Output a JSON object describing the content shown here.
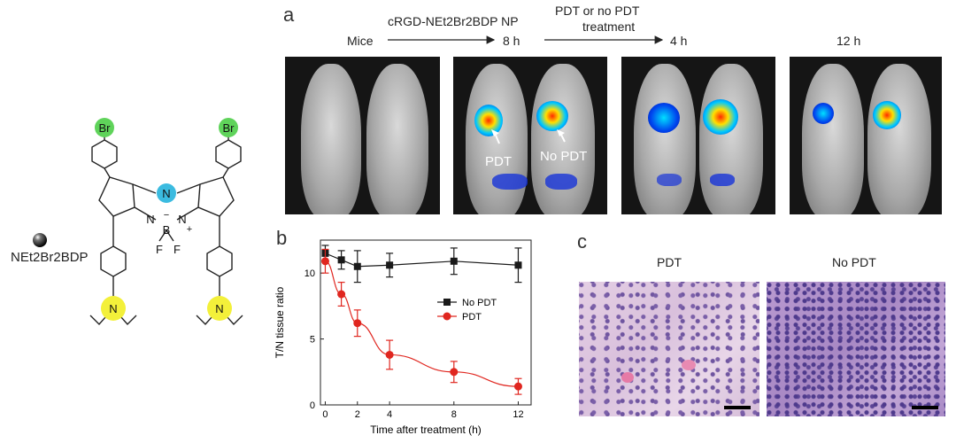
{
  "molecule": {
    "label": "NEt2Br2BDP",
    "atoms": {
      "br": "Br",
      "n": "N",
      "b": "B",
      "f": "F",
      "minus": "−",
      "plus": "+"
    },
    "colors": {
      "br": "#5fd35a",
      "n_center": "#3bbbe0",
      "n_amine": "#f3f03a"
    }
  },
  "panel_a": {
    "letter": "a",
    "step1": "cRGD-NEt2Br2BDP NP",
    "step2_line1": "PDT or no PDT",
    "step2_line2": "treatment",
    "time_labels": [
      "Mice",
      "8 h",
      "4 h",
      "12 h"
    ],
    "annot_pdt": "PDT",
    "annot_nopdt": "No PDT"
  },
  "panel_b": {
    "letter": "b"
  },
  "panel_c": {
    "letter": "c",
    "labels": [
      "PDT",
      "No PDT"
    ]
  },
  "chart_data": {
    "type": "line",
    "xlabel": "Time after treatment (h)",
    "ylabel": "T/N tissue ratio",
    "xlim": [
      -0.3,
      12.8
    ],
    "ylim": [
      0,
      12.5
    ],
    "xticks": [
      0,
      2,
      4,
      8,
      12
    ],
    "yticks": [
      0,
      5,
      10
    ],
    "legend": "center-right",
    "series": [
      {
        "name": "No PDT",
        "marker": "square",
        "color": "#1a1a1a",
        "x": [
          0,
          1,
          2,
          4,
          8,
          12
        ],
        "y": [
          11.5,
          11.0,
          10.5,
          10.6,
          10.9,
          10.6
        ],
        "err": [
          0.6,
          0.7,
          1.2,
          0.9,
          1.0,
          1.3
        ]
      },
      {
        "name": "PDT",
        "marker": "circle",
        "color": "#e0261f",
        "x": [
          0,
          1,
          2,
          4,
          8,
          12
        ],
        "y": [
          10.9,
          8.4,
          6.2,
          3.8,
          2.5,
          1.4
        ],
        "err": [
          0.9,
          0.9,
          1.0,
          1.1,
          0.8,
          0.6
        ]
      }
    ]
  }
}
